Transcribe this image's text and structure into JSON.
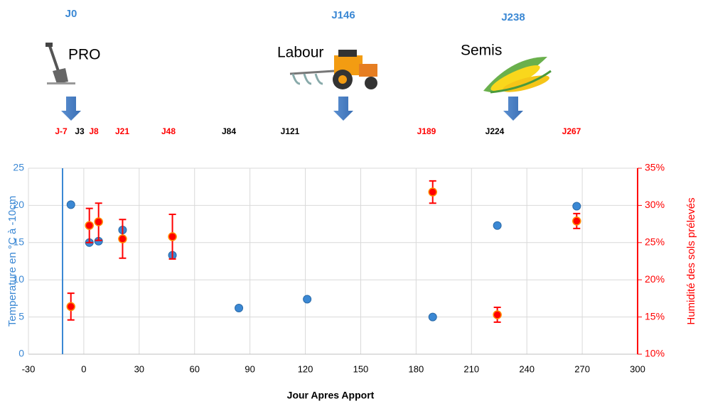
{
  "chart_data": {
    "type": "scatter",
    "xlabel": "Jour Apres Apport",
    "ylabel": "Temperature en °C  à -10cm",
    "y2label": "Humidité des sols prélevés",
    "xlim": [
      -30,
      300
    ],
    "xticks": [
      -30,
      0,
      30,
      60,
      90,
      120,
      150,
      180,
      210,
      240,
      270,
      300
    ],
    "ylim": [
      0,
      25
    ],
    "yticks": [
      0,
      5,
      10,
      15,
      20,
      25
    ],
    "y2lim": [
      10,
      35
    ],
    "y2ticks": [
      {
        "value": 10,
        "label": "10%"
      },
      {
        "value": 15,
        "label": "15%"
      },
      {
        "value": 20,
        "label": "20%"
      },
      {
        "value": 25,
        "label": "25%"
      },
      {
        "value": 30,
        "label": "30%"
      },
      {
        "value": 35,
        "label": "35%"
      }
    ],
    "grid": true,
    "series": [
      {
        "color": "#3b88d4",
        "x": [
          -7,
          3,
          8,
          21,
          48,
          84,
          121,
          189,
          224,
          267
        ],
        "values": [
          20.1,
          15.0,
          15.2,
          16.7,
          13.3,
          6.2,
          7.4,
          5.0,
          17.3,
          19.9
        ]
      },
      {
        "color": "#ff0000",
        "axis": "y2",
        "x": [
          -7,
          3,
          8,
          21,
          48,
          189,
          224,
          267
        ],
        "values": [
          16.4,
          27.3,
          27.8,
          25.5,
          25.8,
          31.8,
          15.3,
          27.9
        ],
        "errors": [
          1.8,
          2.3,
          2.5,
          2.6,
          3.0,
          1.5,
          1.0,
          1.0
        ]
      }
    ],
    "events": [
      {
        "day": "J0",
        "label": "PRO"
      },
      {
        "day": "J146",
        "label": "Labour"
      },
      {
        "day": "J238",
        "label": "Semis"
      }
    ],
    "day_labels": [
      {
        "text": "J-7",
        "color": "#ff0000"
      },
      {
        "text": "J3",
        "color": "#000000"
      },
      {
        "text": "J8",
        "color": "#ff0000"
      },
      {
        "text": "J21",
        "color": "#ff0000"
      },
      {
        "text": "J48",
        "color": "#ff0000"
      },
      {
        "text": "J84",
        "color": "#000000"
      },
      {
        "text": "J121",
        "color": "#000000"
      },
      {
        "text": "J189",
        "color": "#ff0000"
      },
      {
        "text": "J224",
        "color": "#000000"
      },
      {
        "text": "J267",
        "color": "#ff0000"
      }
    ]
  }
}
